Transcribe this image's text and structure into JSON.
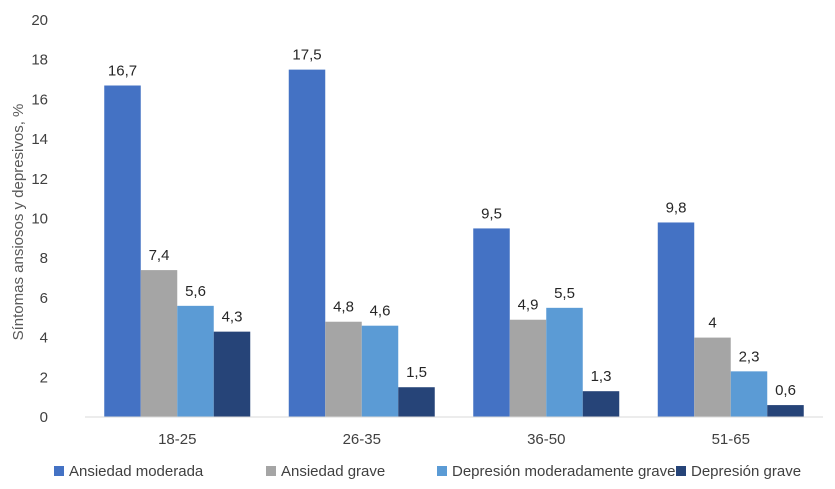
{
  "chart_data": {
    "type": "bar",
    "title": "",
    "xlabel": "",
    "ylabel": "Síntomas ansiosos y depresivos, %",
    "ylim": [
      0,
      20
    ],
    "yticks": [
      "0",
      "2",
      "4",
      "6",
      "8",
      "10",
      "12",
      "14",
      "16",
      "18",
      "20"
    ],
    "grid": false,
    "legend_position": "bottom",
    "categories": [
      "18-25",
      "26-35",
      "36-50",
      "51-65"
    ],
    "series": [
      {
        "name": "Ansiedad moderada",
        "color": "#4472C4",
        "values": [
          16.7,
          17.5,
          9.5,
          9.8
        ],
        "labels": [
          "16,7",
          "17,5",
          "9,5",
          "9,8"
        ]
      },
      {
        "name": "Ansiedad grave",
        "color": "#A5A5A5",
        "values": [
          7.4,
          4.8,
          4.9,
          4.0
        ],
        "labels": [
          "7,4",
          "4,8",
          "4,9",
          "4"
        ]
      },
      {
        "name": "Depresión moderadamente grave",
        "color": "#5B9BD5",
        "values": [
          5.6,
          4.6,
          5.5,
          2.3
        ],
        "labels": [
          "5,6",
          "4,6",
          "5,5",
          "2,3"
        ]
      },
      {
        "name": "Depresión grave",
        "color": "#264478",
        "values": [
          4.3,
          1.5,
          1.3,
          0.6
        ],
        "labels": [
          "4,3",
          "1,5",
          "1,3",
          "0,6"
        ]
      }
    ]
  }
}
